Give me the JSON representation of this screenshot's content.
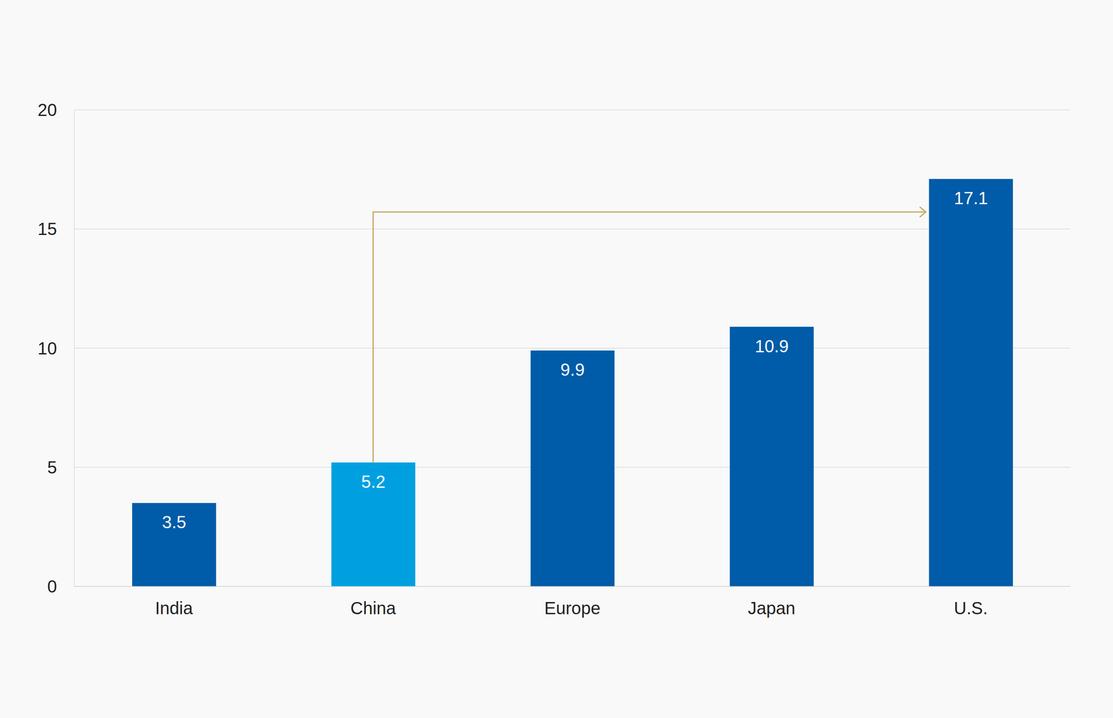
{
  "chart_data": {
    "type": "bar",
    "categories": [
      "India",
      "China",
      "Europe",
      "Japan",
      "U.S."
    ],
    "values": [
      3.5,
      5.2,
      9.9,
      10.9,
      17.1
    ],
    "colors": [
      "#005ca8",
      "#00a0e0",
      "#005ca8",
      "#005ca8",
      "#005ca8"
    ],
    "ylim": [
      0,
      20
    ],
    "yticks": [
      0,
      5,
      10,
      15,
      20
    ],
    "grid": true,
    "data_labels": true
  }
}
